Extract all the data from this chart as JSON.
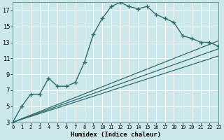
{
  "xlabel": "Humidex (Indice chaleur)",
  "bg_color": "#cce8ea",
  "grid_color": "#ffffff",
  "line_color": "#2e6b6b",
  "xlim": [
    0,
    23
  ],
  "ylim": [
    3,
    18
  ],
  "xticks": [
    0,
    1,
    2,
    3,
    4,
    5,
    6,
    7,
    8,
    9,
    10,
    11,
    12,
    13,
    14,
    15,
    16,
    17,
    18,
    19,
    20,
    21,
    22,
    23
  ],
  "yticks": [
    3,
    5,
    7,
    9,
    11,
    13,
    15,
    17
  ],
  "line1_x": [
    0,
    1,
    2,
    3,
    4,
    5,
    6,
    7,
    8,
    9,
    10,
    11,
    12,
    13,
    14,
    15,
    16,
    17,
    18,
    19,
    20,
    21,
    22,
    23
  ],
  "line1_y": [
    3,
    5.0,
    6.5,
    6.5,
    8.5,
    7.5,
    7.5,
    8.0,
    10.5,
    14.0,
    16.0,
    17.5,
    18.0,
    17.5,
    17.2,
    17.5,
    16.5,
    16.0,
    15.5,
    13.8,
    13.5,
    13.0,
    13.0,
    12.5
  ],
  "line2_x": [
    0,
    23
  ],
  "line2_y": [
    3,
    13.2
  ],
  "line3_x": [
    0,
    23
  ],
  "line3_y": [
    3,
    12.2
  ],
  "line4_x": [
    0,
    23
  ],
  "line4_y": [
    3,
    11.3
  ]
}
